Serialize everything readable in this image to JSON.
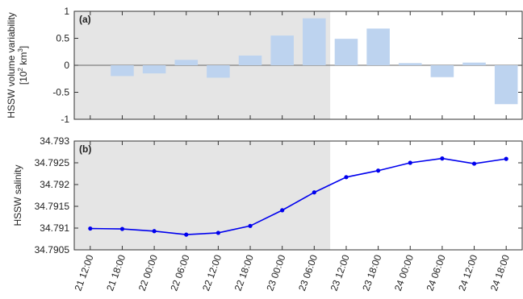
{
  "colors": {
    "bar_fill": "#bdd3ef",
    "line": "#0000ee",
    "shade": "#e5e5e5",
    "zero_line": "#666666",
    "axis": "#333333"
  },
  "x_tick_labels": [
    "21 12:00",
    "21 18:00",
    "22 00:00",
    "22 06:00",
    "22 12:00",
    "22 18:00",
    "23 00:00",
    "23 06:00",
    "23 12:00",
    "23 18:00",
    "24 00:00",
    "24 06:00",
    "24 12:00",
    "24 18:00"
  ],
  "chart_data": [
    {
      "type": "bar",
      "panel_label": "(a)",
      "ylabel_line1": "HSSW volume variability",
      "ylabel_line2": "[10",
      "ylabel_sup1": "2",
      "ylabel_mid": " km",
      "ylabel_sup2": "3",
      "ylabel_end": "]",
      "categories": [
        "21 12:00",
        "21 18:00",
        "22 00:00",
        "22 06:00",
        "22 12:00",
        "22 18:00",
        "23 00:00",
        "23 06:00",
        "23 12:00",
        "23 18:00",
        "24 00:00",
        "24 06:00",
        "24 12:00",
        "24 18:00"
      ],
      "values": [
        0,
        -0.2,
        -0.15,
        0.1,
        -0.23,
        0.18,
        0.55,
        0.87,
        0.49,
        0.68,
        0.04,
        -0.22,
        0.05,
        -0.72
      ],
      "ylim": [
        -1,
        1
      ],
      "yticks": [
        -1,
        -0.5,
        0,
        0.5,
        1
      ],
      "ytick_labels": [
        "-1",
        "-0.5",
        "0",
        "0.5",
        "1"
      ],
      "shaded_x_range": [
        "21 12:00",
        "23 06:00"
      ],
      "grid": false
    },
    {
      "type": "line",
      "panel_label": "(b)",
      "ylabel": "HSSW salinity",
      "x": [
        "21 12:00",
        "21 18:00",
        "22 00:00",
        "22 06:00",
        "22 12:00",
        "22 18:00",
        "23 00:00",
        "23 06:00",
        "23 12:00",
        "23 18:00",
        "24 00:00",
        "24 06:00",
        "24 12:00",
        "24 18:00"
      ],
      "values": [
        34.79099,
        34.79098,
        34.79093,
        34.79085,
        34.79089,
        34.79105,
        34.79141,
        34.79182,
        34.79217,
        34.79232,
        34.7925,
        34.7926,
        34.79248,
        34.79259
      ],
      "ylim": [
        34.7905,
        34.793
      ],
      "yticks": [
        34.7905,
        34.791,
        34.7915,
        34.792,
        34.7925,
        34.793
      ],
      "ytick_labels": [
        "34.7905",
        "34.791",
        "34.7915",
        "34.792",
        "34.7925",
        "34.793"
      ],
      "shaded_x_range": [
        "21 12:00",
        "23 06:00"
      ],
      "grid": false
    }
  ]
}
